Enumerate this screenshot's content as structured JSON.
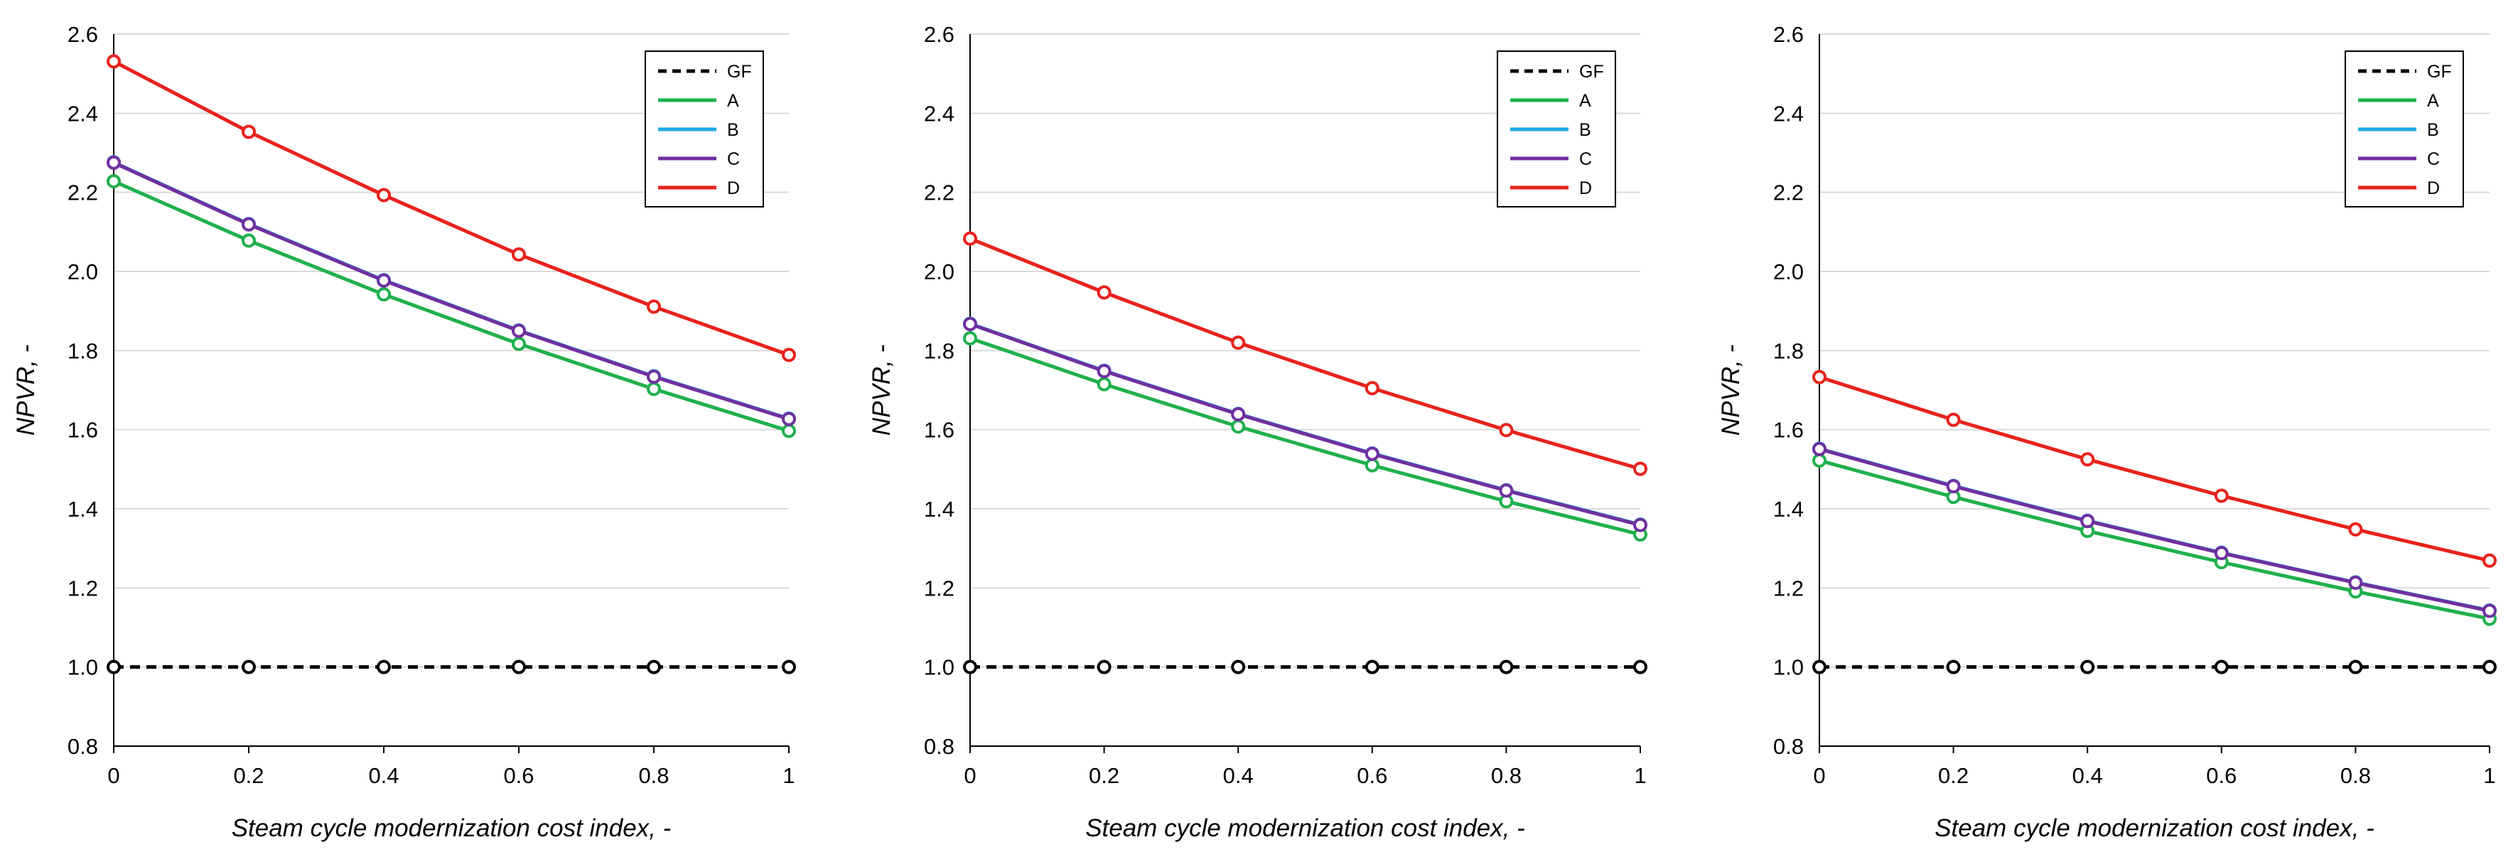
{
  "chart_data": [
    {
      "type": "line",
      "title": "",
      "xlabel": "Steam cycle modernization cost index, -",
      "ylabel": "NPVR, -",
      "x": [
        0,
        0.2,
        0.4,
        0.6,
        0.8,
        1
      ],
      "xticks": [
        "0",
        "0.2",
        "0.4",
        "0.6",
        "0.8",
        "1"
      ],
      "ylim": [
        0.8,
        2.6
      ],
      "yticks": [
        "0.8",
        "1.0",
        "1.2",
        "1.4",
        "1.6",
        "1.8",
        "2.0",
        "2.2",
        "2.4",
        "2.6"
      ],
      "grid": true,
      "legend_position": "top-right",
      "series": [
        {
          "name": "GF",
          "color": "#000000",
          "dashed": true,
          "values": [
            1.0,
            1.0,
            1.0,
            1.0,
            1.0,
            1.0
          ]
        },
        {
          "name": "A",
          "color": "#1fb04c",
          "dashed": false,
          "values": [
            2.228,
            2.078,
            1.942,
            1.817,
            1.703,
            1.597
          ]
        },
        {
          "name": "B",
          "color": "#1da9e6",
          "dashed": false,
          "values": [
            2.276,
            2.12,
            1.978,
            1.851,
            1.735,
            1.628
          ]
        },
        {
          "name": "C",
          "color": "#7030a0",
          "dashed": false,
          "values": [
            2.275,
            2.119,
            1.977,
            1.85,
            1.734,
            1.627
          ]
        },
        {
          "name": "D",
          "color": "#e8221c",
          "dashed": false,
          "values": [
            2.531,
            2.353,
            2.193,
            2.043,
            1.911,
            1.789
          ]
        }
      ]
    },
    {
      "type": "line",
      "title": "",
      "xlabel": "Steam cycle modernization cost index, -",
      "ylabel": "NPVR, -",
      "x": [
        0,
        0.2,
        0.4,
        0.6,
        0.8,
        1
      ],
      "xticks": [
        "0",
        "0.2",
        "0.4",
        "0.6",
        "0.8",
        "1"
      ],
      "ylim": [
        0.8,
        2.6
      ],
      "yticks": [
        "0.8",
        "1.0",
        "1.2",
        "1.4",
        "1.6",
        "1.8",
        "2.0",
        "2.2",
        "2.4",
        "2.6"
      ],
      "grid": true,
      "legend_position": "top-right",
      "series": [
        {
          "name": "GF",
          "color": "#000000",
          "dashed": true,
          "values": [
            1.0,
            1.0,
            1.0,
            1.0,
            1.0,
            1.0
          ]
        },
        {
          "name": "A",
          "color": "#1fb04c",
          "dashed": false,
          "values": [
            1.831,
            1.715,
            1.608,
            1.51,
            1.419,
            1.335
          ]
        },
        {
          "name": "B",
          "color": "#1da9e6",
          "dashed": false,
          "values": [
            1.868,
            1.749,
            1.64,
            1.54,
            1.447,
            1.36
          ]
        },
        {
          "name": "C",
          "color": "#7030a0",
          "dashed": false,
          "values": [
            1.867,
            1.748,
            1.639,
            1.539,
            1.446,
            1.359
          ]
        },
        {
          "name": "D",
          "color": "#e8221c",
          "dashed": false,
          "values": [
            2.083,
            1.947,
            1.82,
            1.705,
            1.599,
            1.501
          ]
        }
      ]
    },
    {
      "type": "line",
      "title": "",
      "xlabel": "Steam cycle modernization cost index, -",
      "ylabel": "NPVR, -",
      "x": [
        0,
        0.2,
        0.4,
        0.6,
        0.8,
        1
      ],
      "xticks": [
        "0",
        "0.2",
        "0.4",
        "0.6",
        "0.8",
        "1"
      ],
      "ylim": [
        0.8,
        2.6
      ],
      "yticks": [
        "0.8",
        "1.0",
        "1.2",
        "1.4",
        "1.6",
        "1.8",
        "2.0",
        "2.2",
        "2.4",
        "2.6"
      ],
      "grid": true,
      "legend_position": "top-right",
      "series": [
        {
          "name": "GF",
          "color": "#000000",
          "dashed": true,
          "values": [
            1.0,
            1.0,
            1.0,
            1.0,
            1.0,
            1.0
          ]
        },
        {
          "name": "A",
          "color": "#1fb04c",
          "dashed": false,
          "values": [
            1.522,
            1.43,
            1.344,
            1.265,
            1.191,
            1.122
          ]
        },
        {
          "name": "B",
          "color": "#1da9e6",
          "dashed": false,
          "values": [
            1.552,
            1.458,
            1.37,
            1.289,
            1.214,
            1.143
          ]
        },
        {
          "name": "C",
          "color": "#7030a0",
          "dashed": false,
          "values": [
            1.551,
            1.457,
            1.369,
            1.288,
            1.213,
            1.142
          ]
        },
        {
          "name": "D",
          "color": "#e8221c",
          "dashed": false,
          "values": [
            1.733,
            1.625,
            1.525,
            1.433,
            1.348,
            1.269
          ]
        }
      ]
    }
  ]
}
